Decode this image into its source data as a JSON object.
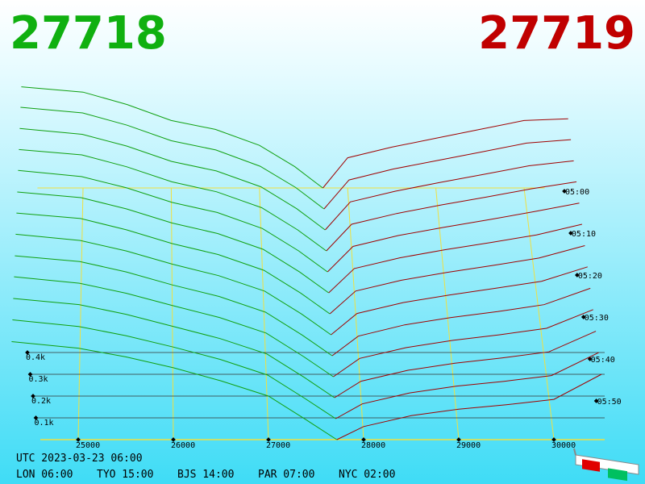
{
  "chart_data": {
    "type": "depth3d",
    "bid_title": "27718",
    "ask_title": "27719",
    "bid_color": "#10a010",
    "ask_color": "#a00000",
    "grid": true,
    "xlim": [
      24300,
      30600
    ],
    "xticks": [
      25000,
      26000,
      27000,
      28000,
      29000,
      30000
    ],
    "ylim": [
      0,
      600
    ],
    "yticks": [
      {
        "value": 100,
        "label": "0.1k"
      },
      {
        "value": 200,
        "label": "0.2k"
      },
      {
        "value": 300,
        "label": "0.3k"
      },
      {
        "value": 400,
        "label": "0.4k"
      }
    ],
    "zlim": [
      "05:00",
      "06:00"
    ],
    "zticks": [
      "05:00",
      "05:10",
      "05:20",
      "05:30",
      "05:40",
      "05:50"
    ],
    "z": [
      "05:00",
      "05:05",
      "05:10",
      "05:15",
      "05:20",
      "05:25",
      "05:30",
      "05:35",
      "05:40",
      "05:45",
      "05:50",
      "05:55",
      "06:00"
    ],
    "bid": {
      "prices": [
        24300,
        25000,
        25500,
        26000,
        26500,
        27000,
        27400,
        27718
      ],
      "series": [
        {
          "values": [
            570,
            540,
            470,
            380,
            330,
            240,
            120,
            0
          ]
        },
        {
          "values": [
            562,
            531,
            463,
            377,
            326,
            236,
            118,
            0
          ]
        },
        {
          "values": [
            551,
            519,
            455,
            372,
            320,
            234,
            115,
            0
          ]
        },
        {
          "values": [
            540,
            512,
            448,
            368,
            315,
            230,
            112,
            0
          ]
        },
        {
          "values": [
            531,
            499,
            440,
            364,
            311,
            227,
            110,
            0
          ]
        },
        {
          "values": [
            519,
            490,
            432,
            359,
            305,
            224,
            107,
            0
          ]
        },
        {
          "values": [
            510,
            482,
            425,
            355,
            300,
            220,
            105,
            0
          ]
        },
        {
          "values": [
            500,
            469,
            417,
            351,
            294,
            217,
            103,
            0
          ]
        },
        {
          "values": [
            489,
            461,
            410,
            346,
            290,
            213,
            100,
            0
          ]
        },
        {
          "values": [
            481,
            450,
            402,
            342,
            285,
            210,
            97,
            0
          ]
        },
        {
          "values": [
            470,
            441,
            395,
            338,
            280,
            207,
            95,
            0
          ]
        },
        {
          "values": [
            461,
            430,
            387,
            334,
            276,
            203,
            92,
            0
          ]
        },
        {
          "values": [
            450,
            420,
            380,
            330,
            270,
            200,
            90,
            0
          ]
        }
      ]
    },
    "ask": {
      "prices": [
        27719,
        28000,
        28500,
        29000,
        29500,
        30000,
        30500
      ],
      "series": [
        {
          "values": [
            0,
            170,
            230,
            280,
            330,
            380,
            390
          ]
        },
        {
          "values": [
            0,
            160,
            221,
            268,
            316,
            364,
            383
          ]
        },
        {
          "values": [
            0,
            152,
            210,
            257,
            302,
            348,
            375
          ]
        },
        {
          "values": [
            0,
            142,
            199,
            245,
            287,
            331,
            368
          ]
        },
        {
          "values": [
            0,
            133,
            190,
            233,
            273,
            315,
            360
          ]
        },
        {
          "values": [
            0,
            125,
            180,
            222,
            259,
            298,
            353
          ]
        },
        {
          "values": [
            0,
            115,
            170,
            210,
            245,
            282,
            345
          ]
        },
        {
          "values": [
            0,
            106,
            160,
            198,
            231,
            266,
            338
          ]
        },
        {
          "values": [
            0,
            96,
            151,
            187,
            216,
            250,
            330
          ]
        },
        {
          "values": [
            0,
            88,
            140,
            175,
            202,
            233,
            323
          ]
        },
        {
          "values": [
            0,
            78,
            130,
            163,
            188,
            217,
            315
          ]
        },
        {
          "values": [
            0,
            69,
            120,
            152,
            174,
            201,
            308
          ]
        },
        {
          "values": [
            0,
            60,
            110,
            140,
            160,
            185,
            300
          ]
        }
      ]
    }
  },
  "footer": {
    "utc": "UTC 2023-03-23 06:00",
    "clocks": [
      "LON 06:00",
      "TYO 15:00",
      "BJS 14:00",
      "PAR 07:00",
      "NYC 02:00"
    ]
  }
}
